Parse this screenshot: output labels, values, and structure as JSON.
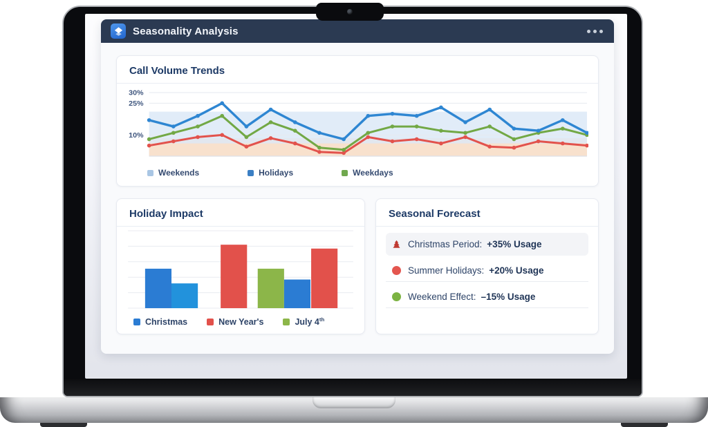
{
  "header": {
    "title": "Seasonality Analysis",
    "app_icon": "layers-diamond-icon",
    "menu_icon": "ellipsis-icon",
    "bg_color": "#2b3a52",
    "icon_color": "#2f7ce0"
  },
  "cards": {
    "trends": {
      "title": "Call Volume Trends"
    },
    "holiday": {
      "title": "Holiday Impact"
    },
    "forecast": {
      "title": "Seasonal Forecast",
      "items": [
        {
          "icon": "christmas-tree-icon",
          "icon_color": "#bf3a31",
          "label": "Christmas Period:",
          "value": "+35% Usage",
          "highlighted": true
        },
        {
          "icon": "circle-icon",
          "icon_color": "#e4564f",
          "label": "Summer Holidays:",
          "value": "+20% Usage",
          "highlighted": false
        },
        {
          "icon": "circle-icon",
          "icon_color": "#7cb342",
          "label": "Weekend Effect:",
          "value": "–15% Usage",
          "highlighted": false
        }
      ]
    }
  },
  "chart_data": [
    {
      "type": "line",
      "title": "Call Volume Trends",
      "xlabel": "",
      "ylabel": "",
      "ylim": [
        0,
        30
      ],
      "grid": true,
      "legend_position": "bottom",
      "yticks": [
        {
          "value": 30,
          "label": "30%"
        },
        {
          "value": 25,
          "label": "25%"
        },
        {
          "value": 10,
          "label": "10%"
        }
      ],
      "bands": [
        {
          "top": 21,
          "color": "#d9e7f6",
          "opacity": 0.8
        },
        {
          "top": 8.5,
          "color": "#e2e5eb",
          "opacity": 0.7
        },
        {
          "top": 6,
          "color": "#fbdfc7",
          "opacity": 0.85
        }
      ],
      "series": [
        {
          "name": "Holidays",
          "color": "#2e86d2",
          "width": 3.4,
          "values": [
            17,
            14,
            19,
            25,
            14,
            22,
            16,
            11,
            8,
            19,
            20,
            19,
            23,
            16,
            22,
            13,
            12,
            17,
            11
          ]
        },
        {
          "name": "Weekdays",
          "color": "#72a845",
          "width": 3,
          "values": [
            8,
            11,
            14,
            19,
            9,
            16,
            12,
            4,
            3,
            11,
            14,
            14,
            12,
            11,
            14,
            8,
            11,
            13,
            10
          ]
        },
        {
          "name": "Weekends",
          "color": "#e2524c",
          "width": 3,
          "values": [
            5,
            7,
            9,
            10,
            4.5,
            8.5,
            6,
            2,
            1.5,
            9,
            7,
            8,
            6,
            9,
            4.5,
            4,
            7,
            6,
            5
          ]
        }
      ],
      "legend": [
        {
          "label": "Weekends",
          "color": "#a9c6e4"
        },
        {
          "label": "Holidays",
          "color": "#3b7fc4"
        },
        {
          "label": "Weekdays",
          "color": "#70a84e"
        }
      ]
    },
    {
      "type": "bar",
      "title": "Holiday Impact",
      "xlabel": "",
      "ylabel": "",
      "ylim": [
        0,
        100
      ],
      "grid": true,
      "legend_position": "bottom",
      "bars": [
        {
          "group": "Christmas",
          "color": "#2b7cd3",
          "value": 51
        },
        {
          "group": "Christmas",
          "color": "#2292dc",
          "value": 32
        },
        {
          "group": "New Year's",
          "color": "#e2514b",
          "value": 82
        },
        {
          "group": "July 4th",
          "color": "#8cb649",
          "value": 51
        },
        {
          "group": "July 4th",
          "color": "#2b7cd3",
          "value": 37
        },
        {
          "group": "New Year's",
          "color": "#e2514b",
          "value": 77
        }
      ],
      "legend": [
        {
          "label": "Christmas",
          "color": "#2b7cd3"
        },
        {
          "label": "New Year's",
          "color": "#e2514b"
        },
        {
          "label": "July 4th",
          "color": "#8cb649"
        }
      ]
    }
  ]
}
